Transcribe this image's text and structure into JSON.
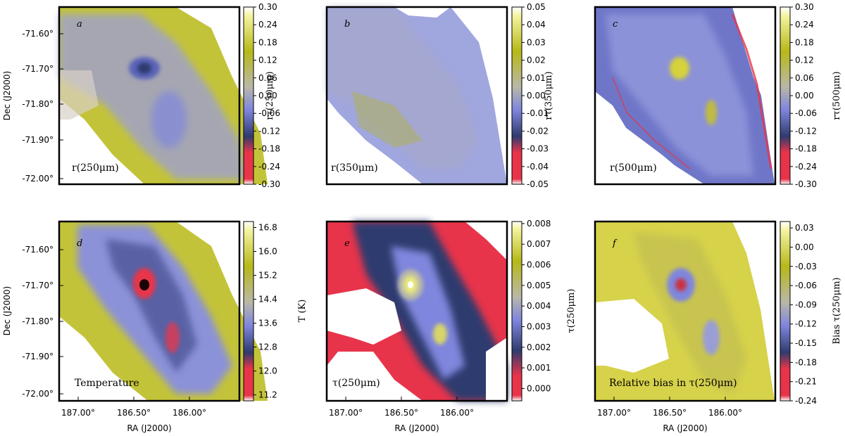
{
  "figure": {
    "dec_axis_label": "Dec (J2000)",
    "ra_axis_label": "RA (J2000)",
    "ra_ticks": [
      "187.00°",
      "186.50°",
      "186.00°"
    ],
    "dec_ticks": [
      "-71.60°",
      "-71.70°",
      "-71.80°",
      "-71.90°",
      "-72.00°"
    ]
  },
  "colors": {
    "red": "#e8344a",
    "navy": "#2f3b6e",
    "blue": "#7f86dd",
    "gray": "#b9b8a8",
    "olive": "#b8b818",
    "yellow": "#f4f4a0",
    "white": "#ffffff"
  },
  "chart_data": [
    {
      "type": "heatmap",
      "panel_letter": "a",
      "caption": "r(250μm)",
      "colorbar_label": "rτ(250μm)",
      "colorbar_range": [
        -0.3,
        0.3
      ],
      "colorbar_ticks": [
        "0.30",
        "0.24",
        "0.18",
        "0.12",
        "0.06",
        "0.00",
        "-0.06",
        "-0.12",
        "-0.18",
        "-0.24",
        "-0.30"
      ]
    },
    {
      "type": "heatmap",
      "panel_letter": "b",
      "caption": "r(350μm)",
      "colorbar_label": "rτ(350μm)",
      "colorbar_range": [
        -0.05,
        0.05
      ],
      "colorbar_ticks": [
        "0.05",
        "0.04",
        "0.03",
        "0.02",
        "0.01",
        "0.00",
        "-0.01",
        "-0.02",
        "-0.03",
        "-0.04",
        "-0.05"
      ]
    },
    {
      "type": "heatmap",
      "panel_letter": "c",
      "caption": "r(500μm)",
      "colorbar_label": "rτ(500μm)",
      "colorbar_range": [
        -0.3,
        0.3
      ],
      "colorbar_ticks": [
        "0.30",
        "0.24",
        "0.18",
        "0.12",
        "0.06",
        "0.00",
        "-0.06",
        "-0.12",
        "-0.18",
        "-0.24",
        "-0.30"
      ]
    },
    {
      "type": "heatmap",
      "panel_letter": "d",
      "caption": "Temperature",
      "colorbar_label": "T (K)",
      "colorbar_range": [
        11.0,
        17.0
      ],
      "colorbar_ticks": [
        "16.8",
        "16.0",
        "15.2",
        "14.4",
        "13.6",
        "12.8",
        "12.0",
        "11.2"
      ]
    },
    {
      "type": "heatmap",
      "panel_letter": "e",
      "caption": "τ(250μm)",
      "colorbar_label": "τ(250μm)",
      "colorbar_range": [
        -0.0006,
        0.0081
      ],
      "colorbar_ticks": [
        "0.008",
        "0.007",
        "0.006",
        "0.005",
        "0.004",
        "0.003",
        "0.002",
        "0.001",
        "0.000"
      ]
    },
    {
      "type": "heatmap",
      "panel_letter": "f",
      "caption": "Relative bias in τ(250μm)",
      "colorbar_label": "Bias τ(250μm)",
      "colorbar_range": [
        -0.24,
        0.04
      ],
      "colorbar_ticks": [
        "0.03",
        "0.00",
        "-0.03",
        "-0.06",
        "-0.09",
        "-0.12",
        "-0.15",
        "-0.18",
        "-0.21",
        "-0.24"
      ]
    }
  ]
}
